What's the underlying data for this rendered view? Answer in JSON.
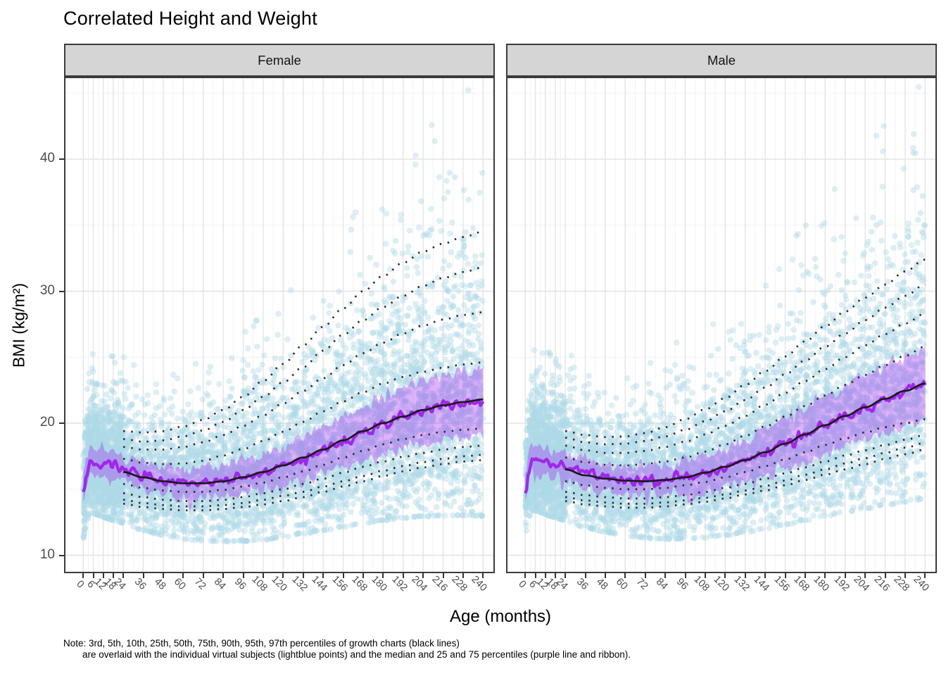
{
  "title": "Correlated Height and Weight",
  "note": {
    "line1": "Note: 3rd, 5th, 10th, 25th, 50th, 75th, 90th, 95th, 97th percentiles of growth charts (black lines)",
    "line2": "are overlaid with the individual virtual subjects (lightblue points) and the median and 25 and 75 percentiles (purple line and ribbon)."
  },
  "colors": {
    "scatter_point": "#ADD8E6",
    "ribbon_purple": "#A020F0",
    "median_purple": "#9E22E8",
    "growth_line_black": "#1a1a1a",
    "strip_background": "#d5d5d5",
    "panel_border": "#3b3b3b",
    "grid_major": "#e4e4e4",
    "grid_minor": "#f1f1f1",
    "tick_text": "#4d4d4d"
  },
  "chart_data": {
    "type": "scatter",
    "title": "Correlated Height and Weight",
    "xlabel": "Age (months)",
    "ylabel": "BMI (kg/m²)",
    "xlim": [
      -11.5,
      246.5
    ],
    "ylim": [
      8.75,
      46.1
    ],
    "x_ticks": [
      0,
      6,
      12,
      18,
      24,
      36,
      48,
      60,
      72,
      84,
      96,
      108,
      120,
      132,
      144,
      156,
      168,
      180,
      192,
      204,
      216,
      228,
      240
    ],
    "y_ticks": [
      10,
      20,
      30,
      40
    ],
    "y_minor": [
      15,
      25,
      35,
      45
    ],
    "grid": "major+minor",
    "legend_position": "none",
    "percentile_labels": [
      "3rd",
      "5th",
      "10th",
      "25th",
      "50th",
      "75th",
      "90th",
      "95th",
      "97th"
    ],
    "facets": [
      {
        "label": "Female",
        "growth_chart": {
          "ages": [
            24,
            36,
            48,
            60,
            72,
            84,
            96,
            108,
            120,
            132,
            144,
            156,
            168,
            180,
            192,
            204,
            216,
            228,
            240
          ],
          "p3": [
            13.9,
            13.65,
            13.5,
            13.4,
            13.4,
            13.5,
            13.65,
            13.85,
            14.1,
            14.4,
            14.8,
            15.2,
            15.6,
            16.0,
            16.35,
            16.65,
            16.9,
            17.1,
            17.2
          ],
          "p5": [
            14.2,
            13.95,
            13.8,
            13.7,
            13.7,
            13.8,
            13.95,
            14.2,
            14.5,
            14.8,
            15.2,
            15.6,
            16.0,
            16.4,
            16.75,
            17.05,
            17.3,
            17.5,
            17.6
          ],
          "p10": [
            14.7,
            14.4,
            14.2,
            14.1,
            14.1,
            14.2,
            14.4,
            14.7,
            15.0,
            15.4,
            15.8,
            16.25,
            16.7,
            17.1,
            17.45,
            17.75,
            18.0,
            18.2,
            18.3
          ],
          "p25": [
            15.4,
            15.1,
            14.9,
            14.8,
            14.8,
            14.95,
            15.2,
            15.5,
            15.9,
            16.35,
            16.85,
            17.4,
            17.9,
            18.4,
            18.8,
            19.1,
            19.35,
            19.5,
            19.6
          ],
          "p50": [
            16.3,
            15.9,
            15.6,
            15.45,
            15.45,
            15.6,
            15.9,
            16.3,
            16.8,
            17.4,
            18.0,
            18.7,
            19.4,
            20.0,
            20.5,
            21.0,
            21.35,
            21.6,
            21.8
          ],
          "p75": [
            17.3,
            17.0,
            16.9,
            16.95,
            17.15,
            17.55,
            18.05,
            18.65,
            19.35,
            20.1,
            20.9,
            21.65,
            22.35,
            23.0,
            23.5,
            23.9,
            24.2,
            24.45,
            24.6
          ],
          "p90": [
            18.2,
            18.0,
            18.0,
            18.2,
            18.55,
            19.1,
            19.8,
            20.6,
            21.5,
            22.45,
            23.4,
            24.4,
            25.3,
            26.1,
            26.8,
            27.4,
            27.85,
            28.2,
            28.4
          ],
          "p95": [
            18.8,
            18.6,
            18.7,
            19.0,
            19.45,
            20.1,
            21.0,
            22.0,
            23.1,
            24.25,
            25.5,
            26.7,
            27.8,
            28.8,
            29.65,
            30.4,
            31.0,
            31.45,
            31.8
          ],
          "p97": [
            19.4,
            19.3,
            19.4,
            19.75,
            20.25,
            21.0,
            22.0,
            23.2,
            24.5,
            25.9,
            27.3,
            28.7,
            30.0,
            31.15,
            32.15,
            33.0,
            33.6,
            34.1,
            34.5
          ]
        },
        "virtual_subjects": {
          "ages": [
            0,
            2,
            4,
            6,
            9,
            12,
            15,
            18,
            21,
            24,
            36,
            48,
            60,
            72,
            84,
            96,
            108,
            120,
            132,
            144,
            156,
            168,
            180,
            192,
            204,
            216,
            228,
            240
          ],
          "median": [
            14.6,
            16.3,
            17.1,
            17.2,
            17.05,
            16.9,
            16.8,
            16.7,
            16.6,
            16.5,
            16.0,
            15.7,
            15.5,
            15.5,
            15.65,
            15.9,
            16.25,
            16.75,
            17.35,
            17.95,
            18.6,
            19.25,
            19.85,
            20.4,
            20.85,
            21.2,
            21.5,
            21.7
          ],
          "iqr_halfwidth": [
            1.0,
            1.1,
            1.15,
            1.15,
            1.1,
            1.05,
            1.0,
            1.0,
            1.0,
            1.0,
            1.0,
            1.05,
            1.1,
            1.15,
            1.2,
            1.3,
            1.4,
            1.5,
            1.65,
            1.8,
            1.95,
            2.1,
            2.2,
            2.3,
            2.4,
            2.45,
            2.5,
            2.55
          ]
        },
        "scatter": {
          "n_uniform": 5200,
          "n_young_extra": 900,
          "seed": 101,
          "lognormal_sigma_age0": 0.105,
          "lognormal_sigma_age240": 0.21
        }
      },
      {
        "label": "Male",
        "growth_chart": {
          "ages": [
            24,
            36,
            48,
            60,
            72,
            84,
            96,
            108,
            120,
            132,
            144,
            156,
            168,
            180,
            192,
            204,
            216,
            228,
            240
          ],
          "p3": [
            14.1,
            13.85,
            13.7,
            13.6,
            13.6,
            13.7,
            13.85,
            14.05,
            14.3,
            14.6,
            14.9,
            15.3,
            15.7,
            16.1,
            16.5,
            16.9,
            17.3,
            17.65,
            18.0
          ],
          "p5": [
            14.4,
            14.15,
            14.0,
            13.9,
            13.9,
            14.0,
            14.15,
            14.35,
            14.6,
            14.9,
            15.25,
            15.65,
            16.1,
            16.5,
            16.95,
            17.35,
            17.75,
            18.15,
            18.5
          ],
          "p10": [
            14.8,
            14.55,
            14.4,
            14.3,
            14.3,
            14.4,
            14.55,
            14.8,
            15.1,
            15.4,
            15.8,
            16.2,
            16.65,
            17.1,
            17.55,
            17.95,
            18.35,
            18.75,
            19.1
          ],
          "p25": [
            15.6,
            15.3,
            15.1,
            15.0,
            15.0,
            15.1,
            15.3,
            15.55,
            15.9,
            16.3,
            16.75,
            17.25,
            17.8,
            18.35,
            18.85,
            19.3,
            19.7,
            20.0,
            20.3
          ],
          "p50": [
            16.5,
            16.05,
            15.8,
            15.65,
            15.6,
            15.7,
            15.9,
            16.25,
            16.7,
            17.2,
            17.8,
            18.45,
            19.15,
            19.85,
            20.55,
            21.2,
            21.85,
            22.45,
            23.0
          ],
          "p75": [
            17.4,
            17.05,
            16.85,
            16.8,
            16.9,
            17.1,
            17.4,
            17.85,
            18.4,
            19.05,
            19.75,
            20.5,
            21.3,
            22.1,
            22.9,
            23.65,
            24.4,
            25.1,
            25.8
          ],
          "p90": [
            18.3,
            17.95,
            17.75,
            17.75,
            17.9,
            18.2,
            18.6,
            19.15,
            19.8,
            20.55,
            21.4,
            22.3,
            23.2,
            24.1,
            25.0,
            25.9,
            26.75,
            27.55,
            28.3
          ],
          "p95": [
            18.9,
            18.55,
            18.4,
            18.45,
            18.65,
            19.0,
            19.5,
            20.15,
            20.9,
            21.75,
            22.7,
            23.7,
            24.75,
            25.8,
            26.8,
            27.8,
            28.75,
            29.65,
            30.5
          ],
          "p97": [
            19.4,
            19.1,
            18.95,
            19.0,
            19.25,
            19.7,
            20.3,
            21.05,
            21.9,
            22.9,
            23.95,
            25.05,
            26.2,
            27.35,
            28.45,
            29.5,
            30.5,
            31.5,
            32.4
          ]
        },
        "virtual_subjects": {
          "ages": [
            0,
            2,
            4,
            6,
            9,
            12,
            15,
            18,
            21,
            24,
            36,
            48,
            60,
            72,
            84,
            96,
            108,
            120,
            132,
            144,
            156,
            168,
            180,
            192,
            204,
            216,
            228,
            240
          ],
          "median": [
            14.9,
            16.5,
            17.3,
            17.4,
            17.3,
            17.15,
            17.0,
            16.9,
            16.8,
            16.7,
            16.2,
            15.9,
            15.7,
            15.65,
            15.7,
            15.9,
            16.2,
            16.65,
            17.15,
            17.75,
            18.4,
            19.1,
            19.8,
            20.5,
            21.15,
            21.8,
            22.4,
            23.0
          ],
          "iqr_halfwidth": [
            1.0,
            1.1,
            1.15,
            1.15,
            1.1,
            1.05,
            1.0,
            1.0,
            1.0,
            1.0,
            1.0,
            1.05,
            1.1,
            1.15,
            1.2,
            1.3,
            1.4,
            1.5,
            1.6,
            1.75,
            1.9,
            2.05,
            2.2,
            2.3,
            2.4,
            2.5,
            2.55,
            2.6
          ]
        },
        "scatter": {
          "n_uniform": 5200,
          "n_young_extra": 900,
          "seed": 202,
          "lognormal_sigma_age0": 0.105,
          "lognormal_sigma_age240": 0.195
        }
      }
    ]
  }
}
